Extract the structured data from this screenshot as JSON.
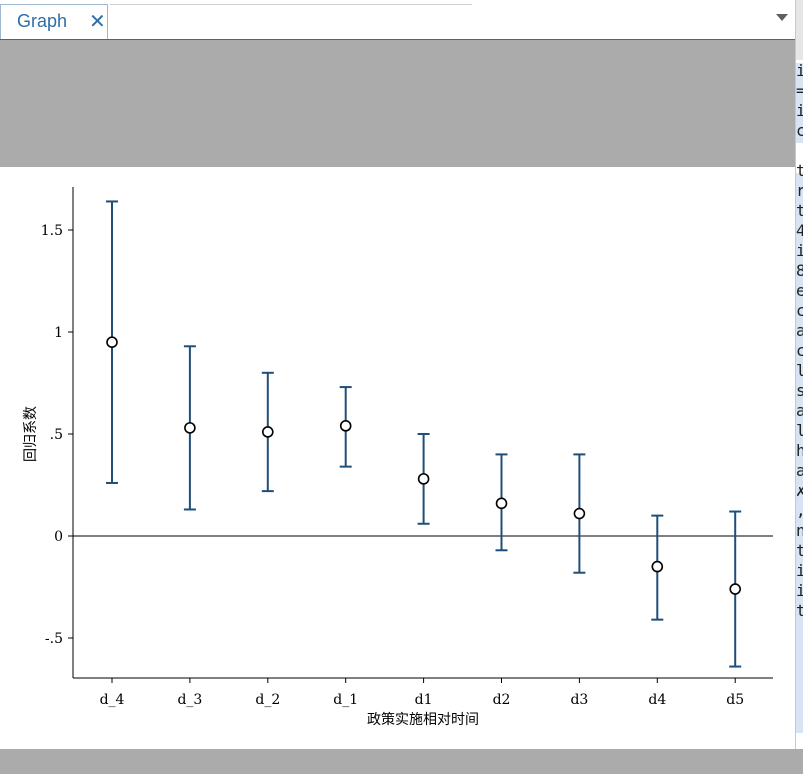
{
  "tab": {
    "label": "Graph",
    "close_glyph": "✕"
  },
  "right_panel_fragments": [
    "i",
    "=",
    "i",
    "c",
    "",
    "t",
    "r",
    "t",
    "4",
    "i",
    "8",
    "e",
    "c",
    "a",
    "c",
    "l",
    "s",
    "a",
    "l",
    "h",
    "a",
    "✗",
    ",",
    "n",
    "t",
    "i",
    "i",
    "t"
  ],
  "colors": {
    "tab_accent": "#2e6ea6",
    "marker_line": "#1f4e79",
    "chrome_gray": "#ababab"
  },
  "chart_data": {
    "type": "scatter",
    "title": "",
    "xlabel": "政策实施相对时间",
    "ylabel": "回归系数",
    "categories": [
      "d_4",
      "d_3",
      "d_2",
      "d_1",
      "d1",
      "d2",
      "d3",
      "d4",
      "d5"
    ],
    "series": [
      {
        "values": [
          0.95,
          0.53,
          0.51,
          0.54,
          0.28,
          0.16,
          0.11,
          -0.15,
          -0.26
        ],
        "ci_lower": [
          0.26,
          0.13,
          0.22,
          0.34,
          0.06,
          -0.07,
          -0.18,
          -0.41,
          -0.64
        ],
        "ci_upper": [
          1.64,
          0.93,
          0.8,
          0.73,
          0.5,
          0.4,
          0.4,
          0.1,
          0.12
        ]
      }
    ],
    "yticks": [
      -0.5,
      0,
      0.5,
      1,
      1.5
    ],
    "ytick_labels": [
      "-.5",
      "0",
      ".5",
      "1",
      "1.5"
    ],
    "ylim": [
      -0.7,
      1.7
    ],
    "reference_line_y": 0,
    "grid": false,
    "marker": "hollow circle",
    "error_bars": "capped range"
  }
}
